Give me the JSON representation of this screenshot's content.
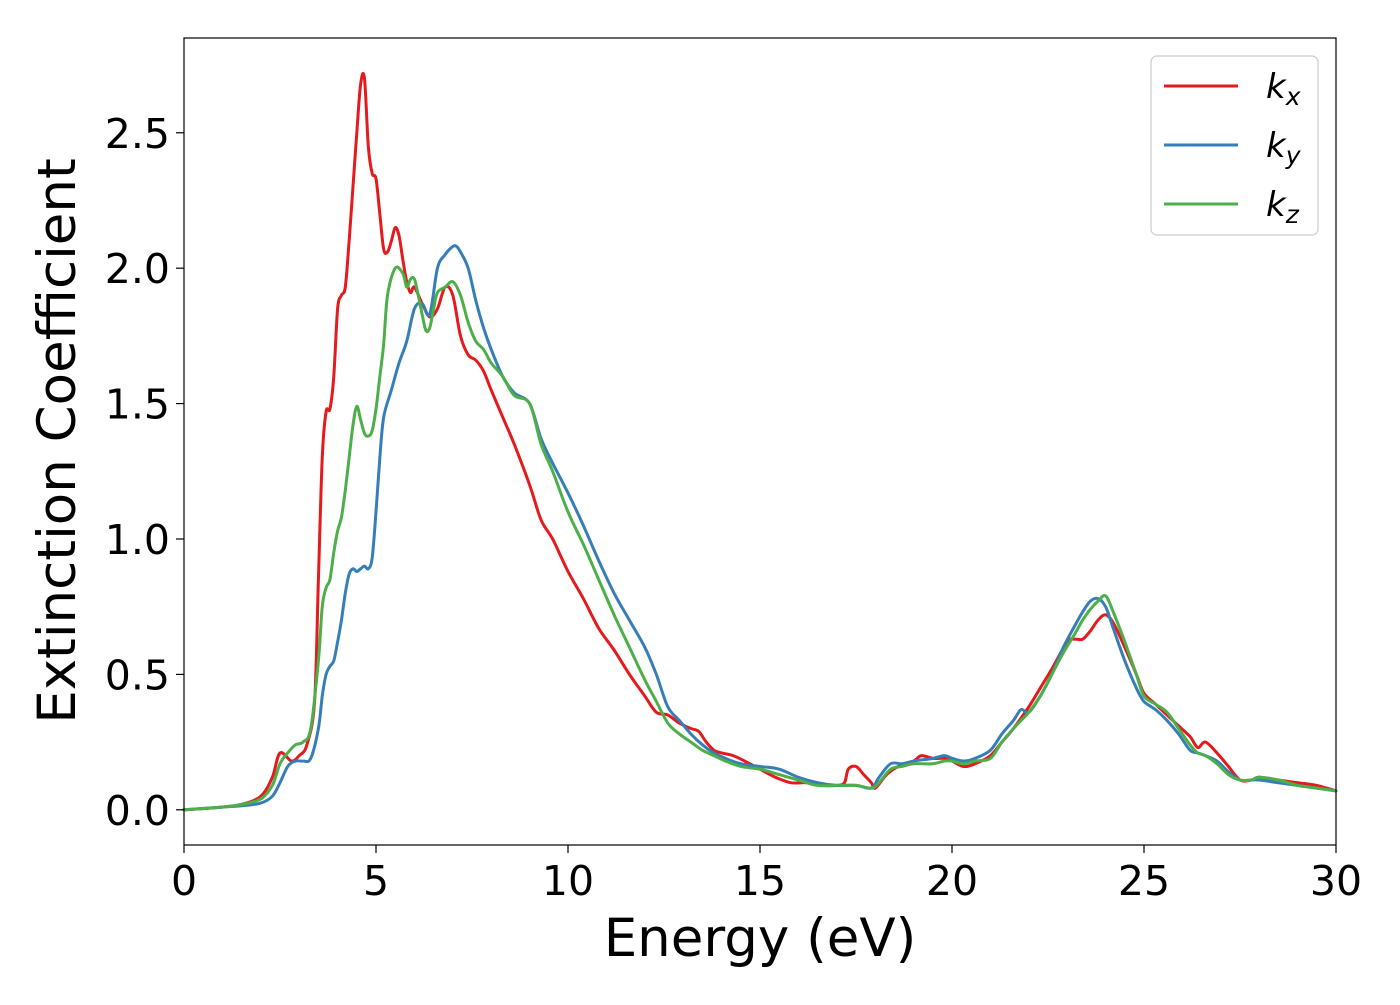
{
  "chart_data": {
    "type": "line",
    "title": "",
    "xlabel": "Energy (eV)",
    "ylabel": "Extinction Coefficient",
    "xlim": [
      0,
      30
    ],
    "ylim": [
      -0.13,
      2.85
    ],
    "xticks": [
      0,
      5,
      10,
      15,
      20,
      25,
      30
    ],
    "xtick_labels": [
      "0",
      "5",
      "10",
      "15",
      "20",
      "25",
      "30"
    ],
    "yticks": [
      0.0,
      0.5,
      1.0,
      1.5,
      2.0,
      2.5
    ],
    "ytick_labels": [
      "0.0",
      "0.5",
      "1.0",
      "1.5",
      "2.0",
      "2.5"
    ],
    "grid": false,
    "legend_position": "top-right",
    "series": [
      {
        "name": "k",
        "subscript": "x",
        "color": "#e41a1c",
        "x": [
          0,
          1,
          1.5,
          2,
          2.3,
          2.5,
          2.8,
          3.0,
          3.2,
          3.4,
          3.5,
          3.6,
          3.7,
          3.8,
          3.9,
          4.0,
          4.1,
          4.2,
          4.3,
          4.4,
          4.5,
          4.6,
          4.7,
          4.8,
          4.9,
          5.0,
          5.1,
          5.2,
          5.3,
          5.4,
          5.5,
          5.6,
          5.7,
          5.8,
          5.9,
          6.0,
          6.2,
          6.4,
          6.6,
          6.8,
          7.0,
          7.2,
          7.4,
          7.6,
          7.8,
          8.0,
          8.3,
          8.6,
          9.0,
          9.3,
          9.6,
          10.0,
          10.4,
          10.8,
          11.2,
          11.6,
          12.0,
          12.3,
          12.6,
          12.9,
          13.2,
          13.4,
          13.6,
          13.8,
          14.0,
          14.3,
          14.6,
          15.0,
          15.4,
          15.8,
          16.2,
          16.6,
          17.0,
          17.2,
          17.3,
          17.5,
          17.7,
          17.9,
          18.0,
          18.3,
          18.6,
          19.0,
          19.2,
          19.5,
          19.8,
          20.0,
          20.3,
          20.6,
          21.0,
          21.3,
          21.6,
          22.0,
          22.3,
          22.6,
          23.0,
          23.2,
          23.4,
          23.6,
          23.8,
          24.0,
          24.2,
          24.5,
          24.8,
          25.0,
          25.3,
          25.6,
          25.9,
          26.2,
          26.4,
          26.6,
          26.9,
          27.2,
          27.5,
          27.8,
          28.0,
          28.5,
          29.0,
          29.5,
          30.0
        ],
        "y": [
          0.0,
          0.01,
          0.02,
          0.05,
          0.12,
          0.21,
          0.18,
          0.2,
          0.24,
          0.4,
          0.85,
          1.3,
          1.47,
          1.48,
          1.6,
          1.85,
          1.9,
          1.93,
          2.1,
          2.3,
          2.5,
          2.68,
          2.7,
          2.45,
          2.35,
          2.33,
          2.2,
          2.07,
          2.06,
          2.1,
          2.15,
          2.12,
          2.03,
          1.95,
          1.91,
          1.93,
          1.87,
          1.82,
          1.85,
          1.93,
          1.9,
          1.75,
          1.68,
          1.66,
          1.62,
          1.55,
          1.45,
          1.35,
          1.2,
          1.07,
          1.0,
          0.88,
          0.78,
          0.67,
          0.59,
          0.5,
          0.42,
          0.36,
          0.35,
          0.32,
          0.3,
          0.29,
          0.25,
          0.22,
          0.21,
          0.2,
          0.18,
          0.15,
          0.12,
          0.1,
          0.1,
          0.09,
          0.09,
          0.1,
          0.15,
          0.16,
          0.13,
          0.1,
          0.08,
          0.13,
          0.16,
          0.18,
          0.2,
          0.19,
          0.19,
          0.18,
          0.16,
          0.17,
          0.2,
          0.25,
          0.3,
          0.38,
          0.45,
          0.52,
          0.62,
          0.63,
          0.63,
          0.66,
          0.7,
          0.72,
          0.69,
          0.6,
          0.5,
          0.43,
          0.39,
          0.35,
          0.31,
          0.27,
          0.23,
          0.25,
          0.21,
          0.16,
          0.11,
          0.11,
          0.12,
          0.11,
          0.1,
          0.09,
          0.07
        ]
      },
      {
        "name": "k",
        "subscript": "y",
        "color": "#377eb8",
        "x": [
          0,
          1,
          1.5,
          2,
          2.3,
          2.5,
          2.7,
          2.9,
          3.1,
          3.3,
          3.5,
          3.6,
          3.7,
          3.8,
          3.9,
          4.0,
          4.1,
          4.2,
          4.3,
          4.4,
          4.5,
          4.6,
          4.7,
          4.8,
          4.9,
          5.0,
          5.1,
          5.2,
          5.4,
          5.6,
          5.8,
          6.0,
          6.2,
          6.4,
          6.6,
          6.8,
          7.0,
          7.1,
          7.2,
          7.4,
          7.6,
          7.8,
          8.0,
          8.3,
          8.6,
          9.0,
          9.3,
          9.6,
          10.0,
          10.4,
          10.8,
          11.2,
          11.6,
          12.0,
          12.3,
          12.6,
          12.9,
          13.2,
          13.5,
          13.8,
          14.1,
          14.5,
          15.0,
          15.5,
          16.0,
          16.5,
          17.0,
          17.5,
          17.9,
          18.1,
          18.4,
          18.7,
          19.0,
          19.5,
          19.8,
          20.0,
          20.3,
          20.6,
          21.0,
          21.3,
          21.6,
          21.8,
          22.0,
          22.3,
          22.6,
          22.9,
          23.2,
          23.4,
          23.6,
          23.8,
          24.0,
          24.2,
          24.5,
          24.8,
          25.0,
          25.3,
          25.6,
          25.9,
          26.2,
          26.4,
          26.6,
          26.9,
          27.2,
          27.5,
          27.8,
          28.0,
          28.5,
          29.0,
          29.5,
          30.0
        ],
        "y": [
          0.0,
          0.01,
          0.015,
          0.025,
          0.05,
          0.1,
          0.16,
          0.18,
          0.18,
          0.19,
          0.3,
          0.42,
          0.5,
          0.53,
          0.55,
          0.62,
          0.7,
          0.8,
          0.87,
          0.89,
          0.88,
          0.89,
          0.9,
          0.89,
          0.93,
          1.1,
          1.3,
          1.45,
          1.55,
          1.65,
          1.73,
          1.85,
          1.87,
          1.83,
          2.0,
          2.05,
          2.08,
          2.08,
          2.06,
          2.0,
          1.88,
          1.78,
          1.7,
          1.6,
          1.54,
          1.5,
          1.37,
          1.28,
          1.17,
          1.05,
          0.92,
          0.8,
          0.7,
          0.6,
          0.5,
          0.38,
          0.33,
          0.28,
          0.24,
          0.21,
          0.19,
          0.17,
          0.16,
          0.15,
          0.12,
          0.1,
          0.09,
          0.09,
          0.08,
          0.12,
          0.17,
          0.17,
          0.18,
          0.19,
          0.2,
          0.19,
          0.18,
          0.19,
          0.22,
          0.28,
          0.33,
          0.37,
          0.36,
          0.42,
          0.5,
          0.6,
          0.68,
          0.73,
          0.77,
          0.78,
          0.75,
          0.67,
          0.55,
          0.45,
          0.4,
          0.37,
          0.33,
          0.28,
          0.22,
          0.21,
          0.2,
          0.18,
          0.14,
          0.11,
          0.11,
          0.11,
          0.1,
          0.09,
          0.08,
          0.07
        ]
      },
      {
        "name": "k",
        "subscript": "z",
        "color": "#4daf4a",
        "x": [
          0,
          1,
          1.5,
          2,
          2.3,
          2.5,
          2.7,
          2.9,
          3.1,
          3.3,
          3.5,
          3.6,
          3.7,
          3.8,
          3.9,
          4.0,
          4.1,
          4.2,
          4.3,
          4.4,
          4.5,
          4.6,
          4.7,
          4.8,
          4.9,
          5.0,
          5.1,
          5.2,
          5.3,
          5.5,
          5.7,
          5.8,
          5.9,
          6.0,
          6.1,
          6.2,
          6.3,
          6.4,
          6.5,
          6.6,
          6.8,
          7.0,
          7.2,
          7.4,
          7.6,
          7.8,
          8.0,
          8.3,
          8.6,
          9.0,
          9.3,
          9.6,
          10.0,
          10.4,
          10.8,
          11.2,
          11.6,
          12.0,
          12.3,
          12.6,
          12.9,
          13.2,
          13.5,
          13.8,
          14.1,
          14.5,
          15.0,
          15.5,
          16.0,
          16.5,
          17.0,
          17.5,
          17.9,
          18.1,
          18.4,
          18.7,
          19.0,
          19.5,
          19.8,
          20.0,
          20.3,
          20.6,
          21.0,
          21.3,
          21.6,
          21.8,
          22.0,
          22.3,
          22.6,
          22.9,
          23.2,
          23.4,
          23.6,
          23.8,
          24.0,
          24.2,
          24.5,
          24.8,
          25.0,
          25.3,
          25.6,
          25.9,
          26.2,
          26.4,
          26.6,
          26.9,
          27.2,
          27.5,
          27.8,
          28.0,
          28.5,
          29.0,
          29.5,
          30.0
        ],
        "y": [
          0.0,
          0.01,
          0.02,
          0.04,
          0.09,
          0.17,
          0.21,
          0.24,
          0.25,
          0.3,
          0.55,
          0.75,
          0.82,
          0.85,
          0.95,
          1.03,
          1.08,
          1.18,
          1.3,
          1.42,
          1.49,
          1.44,
          1.39,
          1.38,
          1.4,
          1.48,
          1.6,
          1.72,
          1.9,
          2.0,
          1.98,
          1.93,
          1.96,
          1.96,
          1.9,
          1.83,
          1.77,
          1.78,
          1.85,
          1.91,
          1.93,
          1.95,
          1.9,
          1.8,
          1.73,
          1.7,
          1.65,
          1.6,
          1.53,
          1.5,
          1.35,
          1.25,
          1.1,
          0.98,
          0.85,
          0.72,
          0.6,
          0.48,
          0.4,
          0.32,
          0.28,
          0.25,
          0.22,
          0.2,
          0.18,
          0.16,
          0.15,
          0.13,
          0.11,
          0.09,
          0.09,
          0.09,
          0.08,
          0.1,
          0.15,
          0.16,
          0.17,
          0.17,
          0.18,
          0.18,
          0.17,
          0.18,
          0.19,
          0.25,
          0.3,
          0.33,
          0.36,
          0.42,
          0.5,
          0.58,
          0.65,
          0.7,
          0.74,
          0.77,
          0.79,
          0.73,
          0.62,
          0.5,
          0.42,
          0.39,
          0.36,
          0.3,
          0.24,
          0.21,
          0.2,
          0.17,
          0.13,
          0.11,
          0.11,
          0.12,
          0.11,
          0.09,
          0.08,
          0.07
        ]
      }
    ]
  }
}
